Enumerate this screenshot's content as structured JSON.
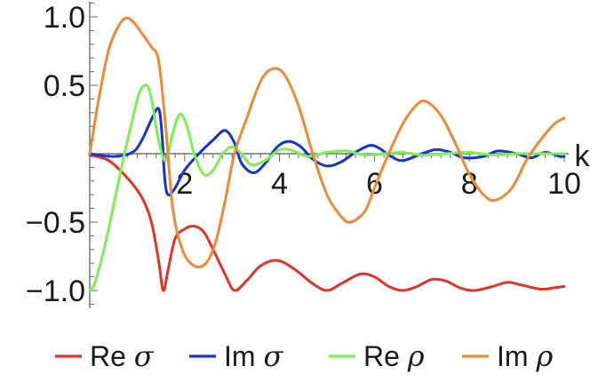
{
  "chart_data": {
    "type": "line",
    "title": "",
    "xlabel": "k",
    "ylabel": "",
    "xlim": [
      0,
      10.1
    ],
    "ylim": [
      -1.05,
      1.05
    ],
    "x_ticks": [
      2,
      4,
      6,
      8,
      10
    ],
    "x_tick_labels": [
      "2",
      "4",
      "6",
      "8",
      "10"
    ],
    "y_ticks": [
      1.0,
      0.5,
      -0.5,
      -1.0
    ],
    "y_tick_labels": [
      "1.0",
      "0.5",
      "−0.5",
      "−1.0"
    ],
    "grid": false,
    "legend_position": "bottom",
    "series": [
      {
        "name": "Re σ",
        "label_prefix": "Re",
        "label_symbol": "σ",
        "color": "#e0342b",
        "points": [
          [
            0,
            -0.01
          ],
          [
            0.4,
            -0.05
          ],
          [
            0.8,
            -0.18
          ],
          [
            1.1,
            -0.32
          ],
          [
            1.3,
            -0.5
          ],
          [
            1.45,
            -0.78
          ],
          [
            1.55,
            -1.0
          ],
          [
            1.65,
            -0.85
          ],
          [
            1.8,
            -0.62
          ],
          [
            2.0,
            -0.55
          ],
          [
            2.2,
            -0.53
          ],
          [
            2.4,
            -0.57
          ],
          [
            2.6,
            -0.7
          ],
          [
            2.85,
            -0.88
          ],
          [
            3.05,
            -1.0
          ],
          [
            3.3,
            -0.93
          ],
          [
            3.6,
            -0.82
          ],
          [
            3.95,
            -0.78
          ],
          [
            4.3,
            -0.84
          ],
          [
            4.7,
            -0.95
          ],
          [
            5.0,
            -1.0
          ],
          [
            5.3,
            -0.95
          ],
          [
            5.7,
            -0.88
          ],
          [
            6.0,
            -0.9
          ],
          [
            6.3,
            -0.97
          ],
          [
            6.6,
            -1.0
          ],
          [
            6.9,
            -0.97
          ],
          [
            7.2,
            -0.92
          ],
          [
            7.5,
            -0.93
          ],
          [
            7.8,
            -0.98
          ],
          [
            8.1,
            -1.0
          ],
          [
            8.5,
            -0.97
          ],
          [
            8.8,
            -0.94
          ],
          [
            9.1,
            -0.96
          ],
          [
            9.5,
            -0.99
          ],
          [
            9.8,
            -0.98
          ],
          [
            10.0,
            -0.97
          ]
        ]
      },
      {
        "name": "Im σ",
        "label_prefix": "Im",
        "label_symbol": "σ",
        "color": "#1533d4",
        "points": [
          [
            0,
            0.0
          ],
          [
            0.5,
            -0.02
          ],
          [
            0.9,
            0.01
          ],
          [
            1.1,
            0.1
          ],
          [
            1.3,
            0.25
          ],
          [
            1.45,
            0.33
          ],
          [
            1.52,
            0.15
          ],
          [
            1.58,
            -0.18
          ],
          [
            1.65,
            -0.3
          ],
          [
            1.8,
            -0.25
          ],
          [
            2.0,
            -0.12
          ],
          [
            2.3,
            0.0
          ],
          [
            2.6,
            0.1
          ],
          [
            2.85,
            0.17
          ],
          [
            3.05,
            0.08
          ],
          [
            3.2,
            -0.07
          ],
          [
            3.45,
            -0.14
          ],
          [
            3.7,
            -0.07
          ],
          [
            3.95,
            0.05
          ],
          [
            4.2,
            0.09
          ],
          [
            4.45,
            0.05
          ],
          [
            4.7,
            -0.04
          ],
          [
            5.0,
            -0.09
          ],
          [
            5.3,
            -0.06
          ],
          [
            5.6,
            0.01
          ],
          [
            5.9,
            0.06
          ],
          [
            6.1,
            0.04
          ],
          [
            6.35,
            -0.02
          ],
          [
            6.6,
            -0.05
          ],
          [
            7.0,
            0.0
          ],
          [
            7.3,
            0.03
          ],
          [
            7.6,
            0.01
          ],
          [
            7.9,
            -0.03
          ],
          [
            8.3,
            -0.02
          ],
          [
            8.6,
            0.02
          ],
          [
            9.0,
            0.0
          ],
          [
            9.3,
            -0.03
          ],
          [
            9.6,
            0.01
          ],
          [
            9.9,
            -0.02
          ],
          [
            10.0,
            -0.02
          ]
        ]
      },
      {
        "name": "Re ρ",
        "label_prefix": "Re",
        "label_symbol": "ρ",
        "color": "#7cf053",
        "points": [
          [
            0,
            -1.0
          ],
          [
            0.1,
            -0.95
          ],
          [
            0.3,
            -0.7
          ],
          [
            0.5,
            -0.38
          ],
          [
            0.7,
            -0.05
          ],
          [
            0.9,
            0.25
          ],
          [
            1.05,
            0.45
          ],
          [
            1.2,
            0.5
          ],
          [
            1.3,
            0.4
          ],
          [
            1.45,
            0.1
          ],
          [
            1.6,
            -0.05
          ],
          [
            1.75,
            0.15
          ],
          [
            1.9,
            0.29
          ],
          [
            2.05,
            0.2
          ],
          [
            2.2,
            0.0
          ],
          [
            2.4,
            -0.15
          ],
          [
            2.6,
            -0.12
          ],
          [
            2.8,
            0.0
          ],
          [
            3.0,
            0.05
          ],
          [
            3.2,
            0.0
          ],
          [
            3.4,
            -0.08
          ],
          [
            3.7,
            -0.05
          ],
          [
            4.0,
            0.03
          ],
          [
            4.3,
            0.02
          ],
          [
            4.6,
            -0.02
          ],
          [
            5.0,
            0.01
          ],
          [
            5.4,
            0.02
          ],
          [
            5.8,
            -0.01
          ],
          [
            6.2,
            0.0
          ],
          [
            6.6,
            0.01
          ],
          [
            7.0,
            -0.01
          ],
          [
            7.5,
            0.0
          ],
          [
            8.0,
            0.01
          ],
          [
            8.5,
            -0.01
          ],
          [
            9.0,
            0.0
          ],
          [
            9.5,
            0.0
          ],
          [
            10.0,
            0.0
          ]
        ]
      },
      {
        "name": "Im ρ",
        "label_prefix": "Im",
        "label_symbol": "ρ",
        "color": "#ec8a36",
        "points": [
          [
            0,
            0.0
          ],
          [
            0.2,
            0.42
          ],
          [
            0.4,
            0.76
          ],
          [
            0.6,
            0.93
          ],
          [
            0.75,
            0.99
          ],
          [
            0.9,
            0.97
          ],
          [
            1.1,
            0.88
          ],
          [
            1.3,
            0.78
          ],
          [
            1.45,
            0.68
          ],
          [
            1.6,
            0.2
          ],
          [
            1.75,
            -0.4
          ],
          [
            1.95,
            -0.7
          ],
          [
            2.2,
            -0.82
          ],
          [
            2.45,
            -0.8
          ],
          [
            2.65,
            -0.65
          ],
          [
            2.85,
            -0.35
          ],
          [
            3.05,
            0.0
          ],
          [
            3.3,
            0.25
          ],
          [
            3.6,
            0.53
          ],
          [
            3.85,
            0.62
          ],
          [
            4.1,
            0.58
          ],
          [
            4.4,
            0.35
          ],
          [
            4.7,
            0.0
          ],
          [
            5.0,
            -0.3
          ],
          [
            5.3,
            -0.46
          ],
          [
            5.5,
            -0.5
          ],
          [
            5.8,
            -0.42
          ],
          [
            6.0,
            -0.25
          ],
          [
            6.3,
            0.0
          ],
          [
            6.6,
            0.22
          ],
          [
            6.9,
            0.36
          ],
          [
            7.1,
            0.38
          ],
          [
            7.4,
            0.28
          ],
          [
            7.7,
            0.08
          ],
          [
            8.0,
            -0.15
          ],
          [
            8.3,
            -0.3
          ],
          [
            8.55,
            -0.34
          ],
          [
            8.9,
            -0.25
          ],
          [
            9.2,
            -0.05
          ],
          [
            9.5,
            0.1
          ],
          [
            9.8,
            0.22
          ],
          [
            10.0,
            0.26
          ]
        ]
      }
    ]
  }
}
